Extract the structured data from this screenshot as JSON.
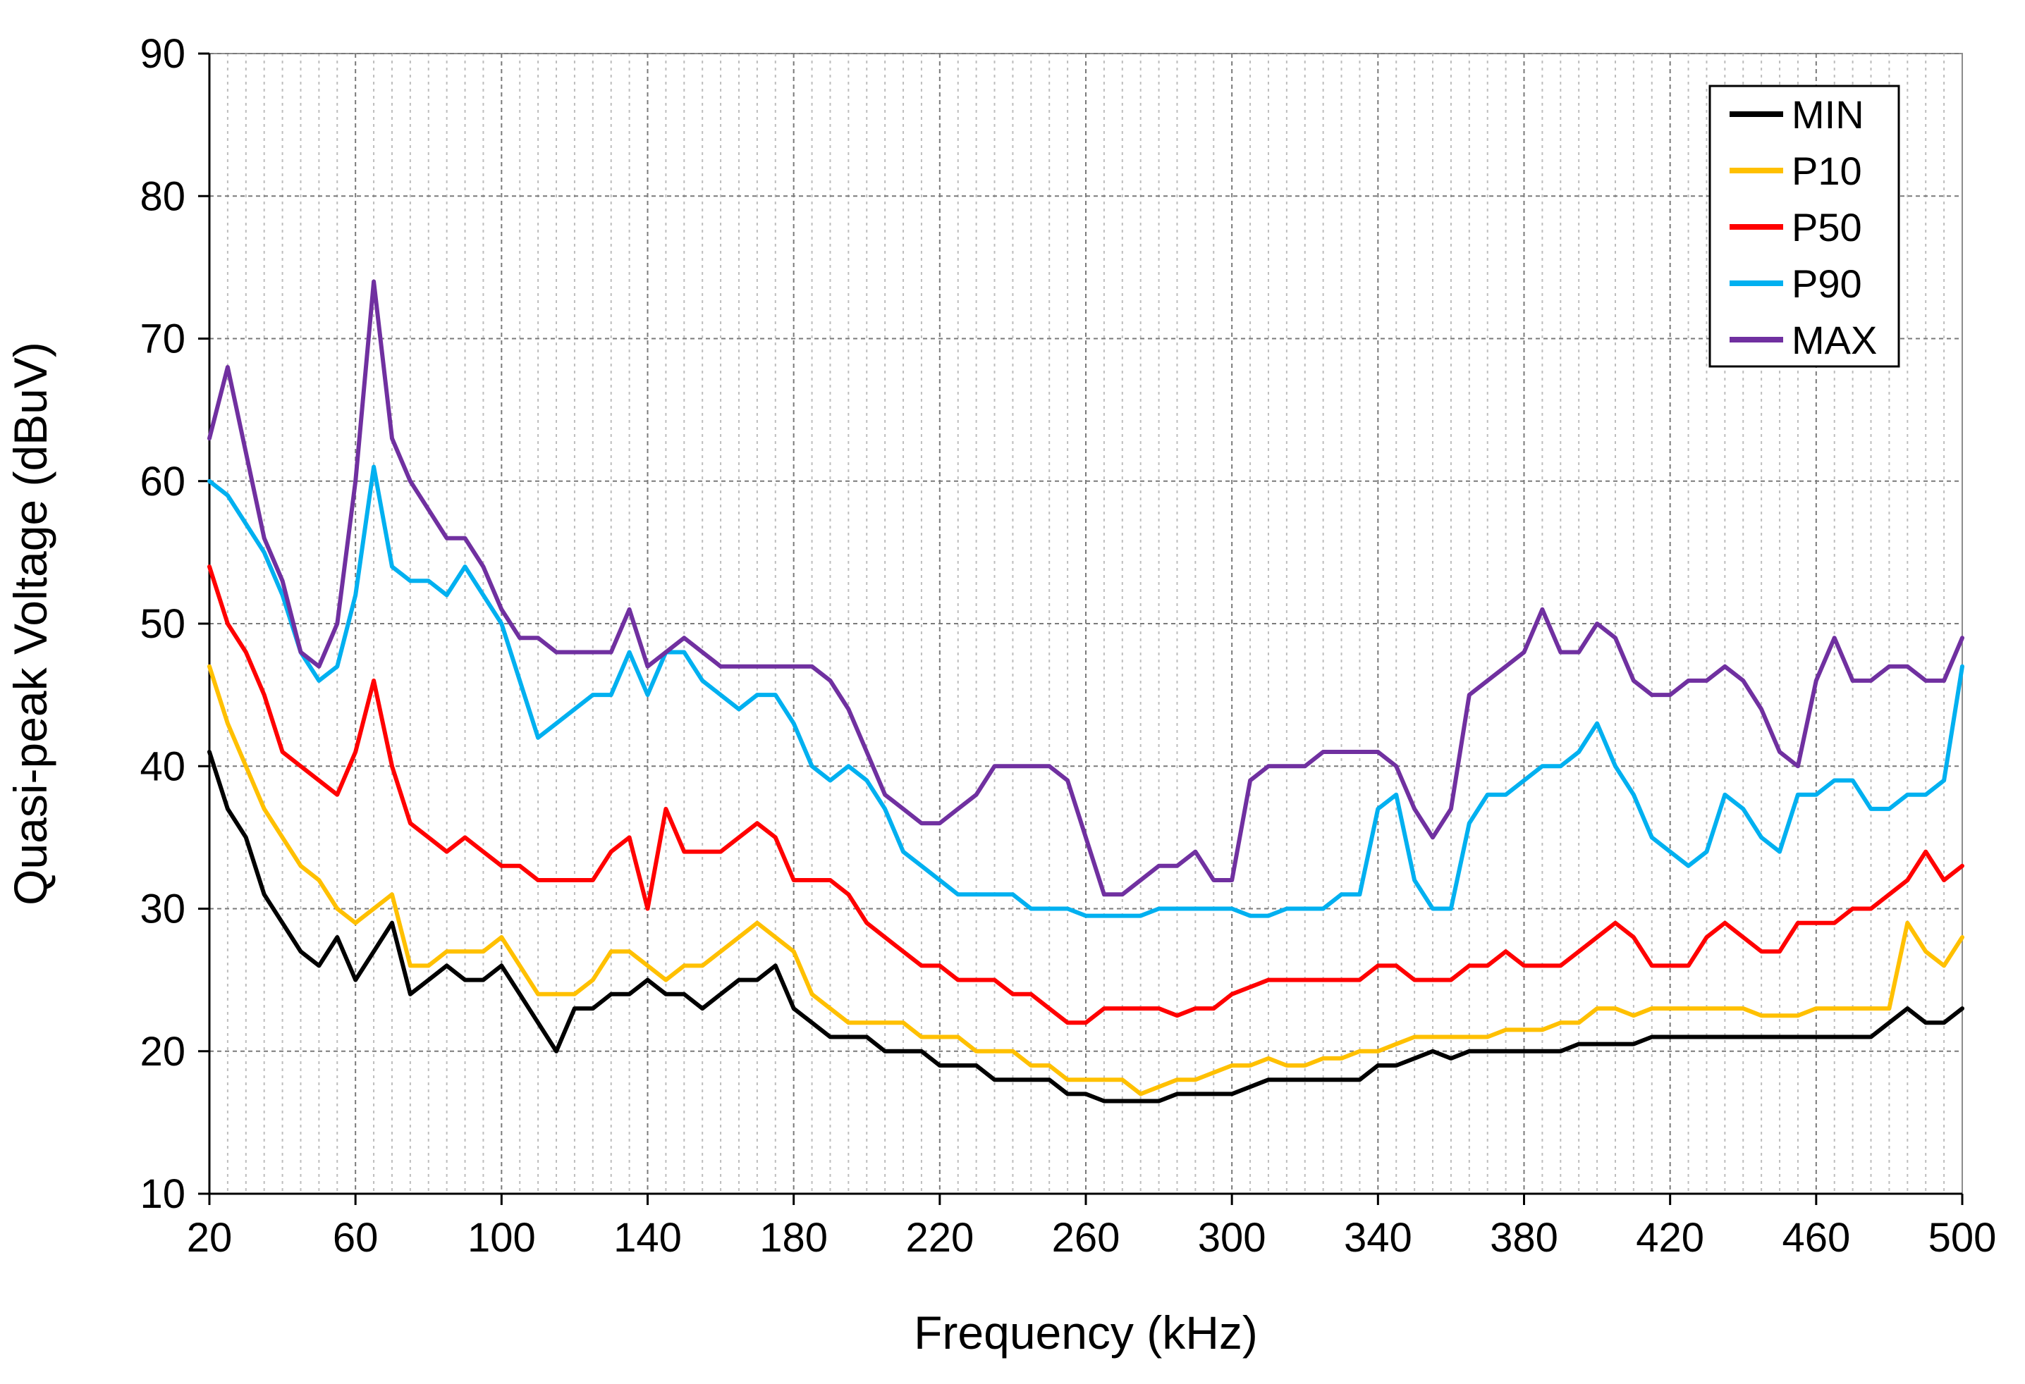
{
  "chart_data": {
    "type": "line",
    "title": "",
    "xlabel": "Frequency (kHz)",
    "ylabel": "Quasi-peak Voltage (dBuV)",
    "xlim": [
      20,
      500
    ],
    "ylim": [
      10,
      90
    ],
    "xticks": [
      20,
      60,
      100,
      140,
      180,
      220,
      260,
      300,
      340,
      380,
      420,
      460,
      500
    ],
    "xtick_labels": [
      "20",
      "60",
      "100",
      "140",
      "180",
      "220",
      "260",
      "300",
      "340",
      "380",
      "420",
      "460",
      "500"
    ],
    "yticks": [
      10,
      20,
      30,
      40,
      50,
      60,
      70,
      80,
      90
    ],
    "ytick_labels": [
      "10",
      "20",
      "30",
      "40",
      "50",
      "60",
      "70",
      "80",
      "90"
    ],
    "minor_x_step": 5,
    "grid": "dashed",
    "legend_position": "top-right",
    "x": [
      20,
      25,
      30,
      35,
      40,
      45,
      50,
      55,
      60,
      65,
      70,
      75,
      80,
      85,
      90,
      95,
      100,
      105,
      110,
      115,
      120,
      125,
      130,
      135,
      140,
      145,
      150,
      155,
      160,
      165,
      170,
      175,
      180,
      185,
      190,
      195,
      200,
      205,
      210,
      215,
      220,
      225,
      230,
      235,
      240,
      245,
      250,
      255,
      260,
      265,
      270,
      275,
      280,
      285,
      290,
      295,
      300,
      305,
      310,
      315,
      320,
      325,
      330,
      335,
      340,
      345,
      350,
      355,
      360,
      365,
      370,
      375,
      380,
      385,
      390,
      395,
      400,
      405,
      410,
      415,
      420,
      425,
      430,
      435,
      440,
      445,
      450,
      455,
      460,
      465,
      470,
      475,
      480,
      485,
      490,
      495,
      500
    ],
    "series": [
      {
        "name": "MIN",
        "color": "#000000",
        "values": [
          41,
          37,
          35,
          31,
          29,
          27,
          26,
          28,
          25,
          27,
          29,
          24,
          25,
          26,
          25,
          25,
          26,
          24,
          22,
          20,
          23,
          23,
          24,
          24,
          25,
          24,
          24,
          23,
          24,
          25,
          25,
          26,
          23,
          22,
          21,
          21,
          21,
          20,
          20,
          20,
          19,
          19,
          19,
          18,
          18,
          18,
          18,
          17,
          17,
          16.5,
          16.5,
          16.5,
          16.5,
          17,
          17,
          17,
          17,
          17.5,
          18,
          18,
          18,
          18,
          18,
          18,
          19,
          19,
          19.5,
          20,
          19.5,
          20,
          20,
          20,
          20,
          20,
          20,
          20.5,
          20.5,
          20.5,
          20.5,
          21,
          21,
          21,
          21,
          21,
          21,
          21,
          21,
          21,
          21,
          21,
          21,
          21,
          22,
          23,
          22,
          22,
          23
        ]
      },
      {
        "name": "P10",
        "color": "#FFC000",
        "values": [
          47,
          43,
          40,
          37,
          35,
          33,
          32,
          30,
          29,
          30,
          31,
          26,
          26,
          27,
          27,
          27,
          28,
          26,
          24,
          24,
          24,
          25,
          27,
          27,
          26,
          25,
          26,
          26,
          27,
          28,
          29,
          28,
          27,
          24,
          23,
          22,
          22,
          22,
          22,
          21,
          21,
          21,
          20,
          20,
          20,
          19,
          19,
          18,
          18,
          18,
          18,
          17,
          17.5,
          18,
          18,
          18.5,
          19,
          19,
          19.5,
          19,
          19,
          19.5,
          19.5,
          20,
          20,
          20.5,
          21,
          21,
          21,
          21,
          21,
          21.5,
          21.5,
          21.5,
          22,
          22,
          23,
          23,
          22.5,
          23,
          23,
          23,
          23,
          23,
          23,
          22.5,
          22.5,
          22.5,
          23,
          23,
          23,
          23,
          23,
          29,
          27,
          26,
          28
        ]
      },
      {
        "name": "P50",
        "color": "#FF0000",
        "values": [
          54,
          50,
          48,
          45,
          41,
          40,
          39,
          38,
          41,
          46,
          40,
          36,
          35,
          34,
          35,
          34,
          33,
          33,
          32,
          32,
          32,
          32,
          34,
          35,
          30,
          37,
          34,
          34,
          34,
          35,
          36,
          35,
          32,
          32,
          32,
          31,
          29,
          28,
          27,
          26,
          26,
          25,
          25,
          25,
          24,
          24,
          23,
          22,
          22,
          23,
          23,
          23,
          23,
          22.5,
          23,
          23,
          24,
          24.5,
          25,
          25,
          25,
          25,
          25,
          25,
          26,
          26,
          25,
          25,
          25,
          26,
          26,
          27,
          26,
          26,
          26,
          27,
          28,
          29,
          28,
          26,
          26,
          26,
          28,
          29,
          28,
          27,
          27,
          29,
          29,
          29,
          30,
          30,
          31,
          32,
          34,
          32,
          33
        ]
      },
      {
        "name": "P90",
        "color": "#00B0F0",
        "values": [
          60,
          59,
          57,
          55,
          52,
          48,
          46,
          47,
          52,
          61,
          54,
          53,
          53,
          52,
          54,
          52,
          50,
          46,
          42,
          43,
          44,
          45,
          45,
          48,
          45,
          48,
          48,
          46,
          45,
          44,
          45,
          45,
          43,
          40,
          39,
          40,
          39,
          37,
          34,
          33,
          32,
          31,
          31,
          31,
          31,
          30,
          30,
          30,
          29.5,
          29.5,
          29.5,
          29.5,
          30,
          30,
          30,
          30,
          30,
          29.5,
          29.5,
          30,
          30,
          30,
          31,
          31,
          37,
          38,
          32,
          30,
          30,
          36,
          38,
          38,
          39,
          40,
          40,
          41,
          43,
          40,
          38,
          35,
          34,
          33,
          34,
          38,
          37,
          35,
          34,
          38,
          38,
          39,
          39,
          37,
          37,
          38,
          38,
          39,
          47
        ]
      },
      {
        "name": "MAX",
        "color": "#7030A0",
        "values": [
          63,
          68,
          62,
          56,
          53,
          48,
          47,
          50,
          60,
          74,
          63,
          60,
          58,
          56,
          56,
          54,
          51,
          49,
          49,
          48,
          48,
          48,
          48,
          51,
          47,
          48,
          49,
          48,
          47,
          47,
          47,
          47,
          47,
          47,
          46,
          44,
          41,
          38,
          37,
          36,
          36,
          37,
          38,
          40,
          40,
          40,
          40,
          39,
          35,
          31,
          31,
          32,
          33,
          33,
          34,
          32,
          32,
          39,
          40,
          40,
          40,
          41,
          41,
          41,
          41,
          40,
          37,
          35,
          37,
          45,
          46,
          47,
          48,
          51,
          48,
          48,
          50,
          49,
          46,
          45,
          45,
          46,
          46,
          47,
          46,
          44,
          41,
          40,
          46,
          49,
          46,
          46,
          47,
          47,
          46,
          46,
          49
        ]
      }
    ]
  },
  "legend": {
    "items": [
      {
        "label": "MIN",
        "color": "#000000"
      },
      {
        "label": "P10",
        "color": "#FFC000"
      },
      {
        "label": "P50",
        "color": "#FF0000"
      },
      {
        "label": "P90",
        "color": "#00B0F0"
      },
      {
        "label": "MAX",
        "color": "#7030A0"
      }
    ]
  }
}
